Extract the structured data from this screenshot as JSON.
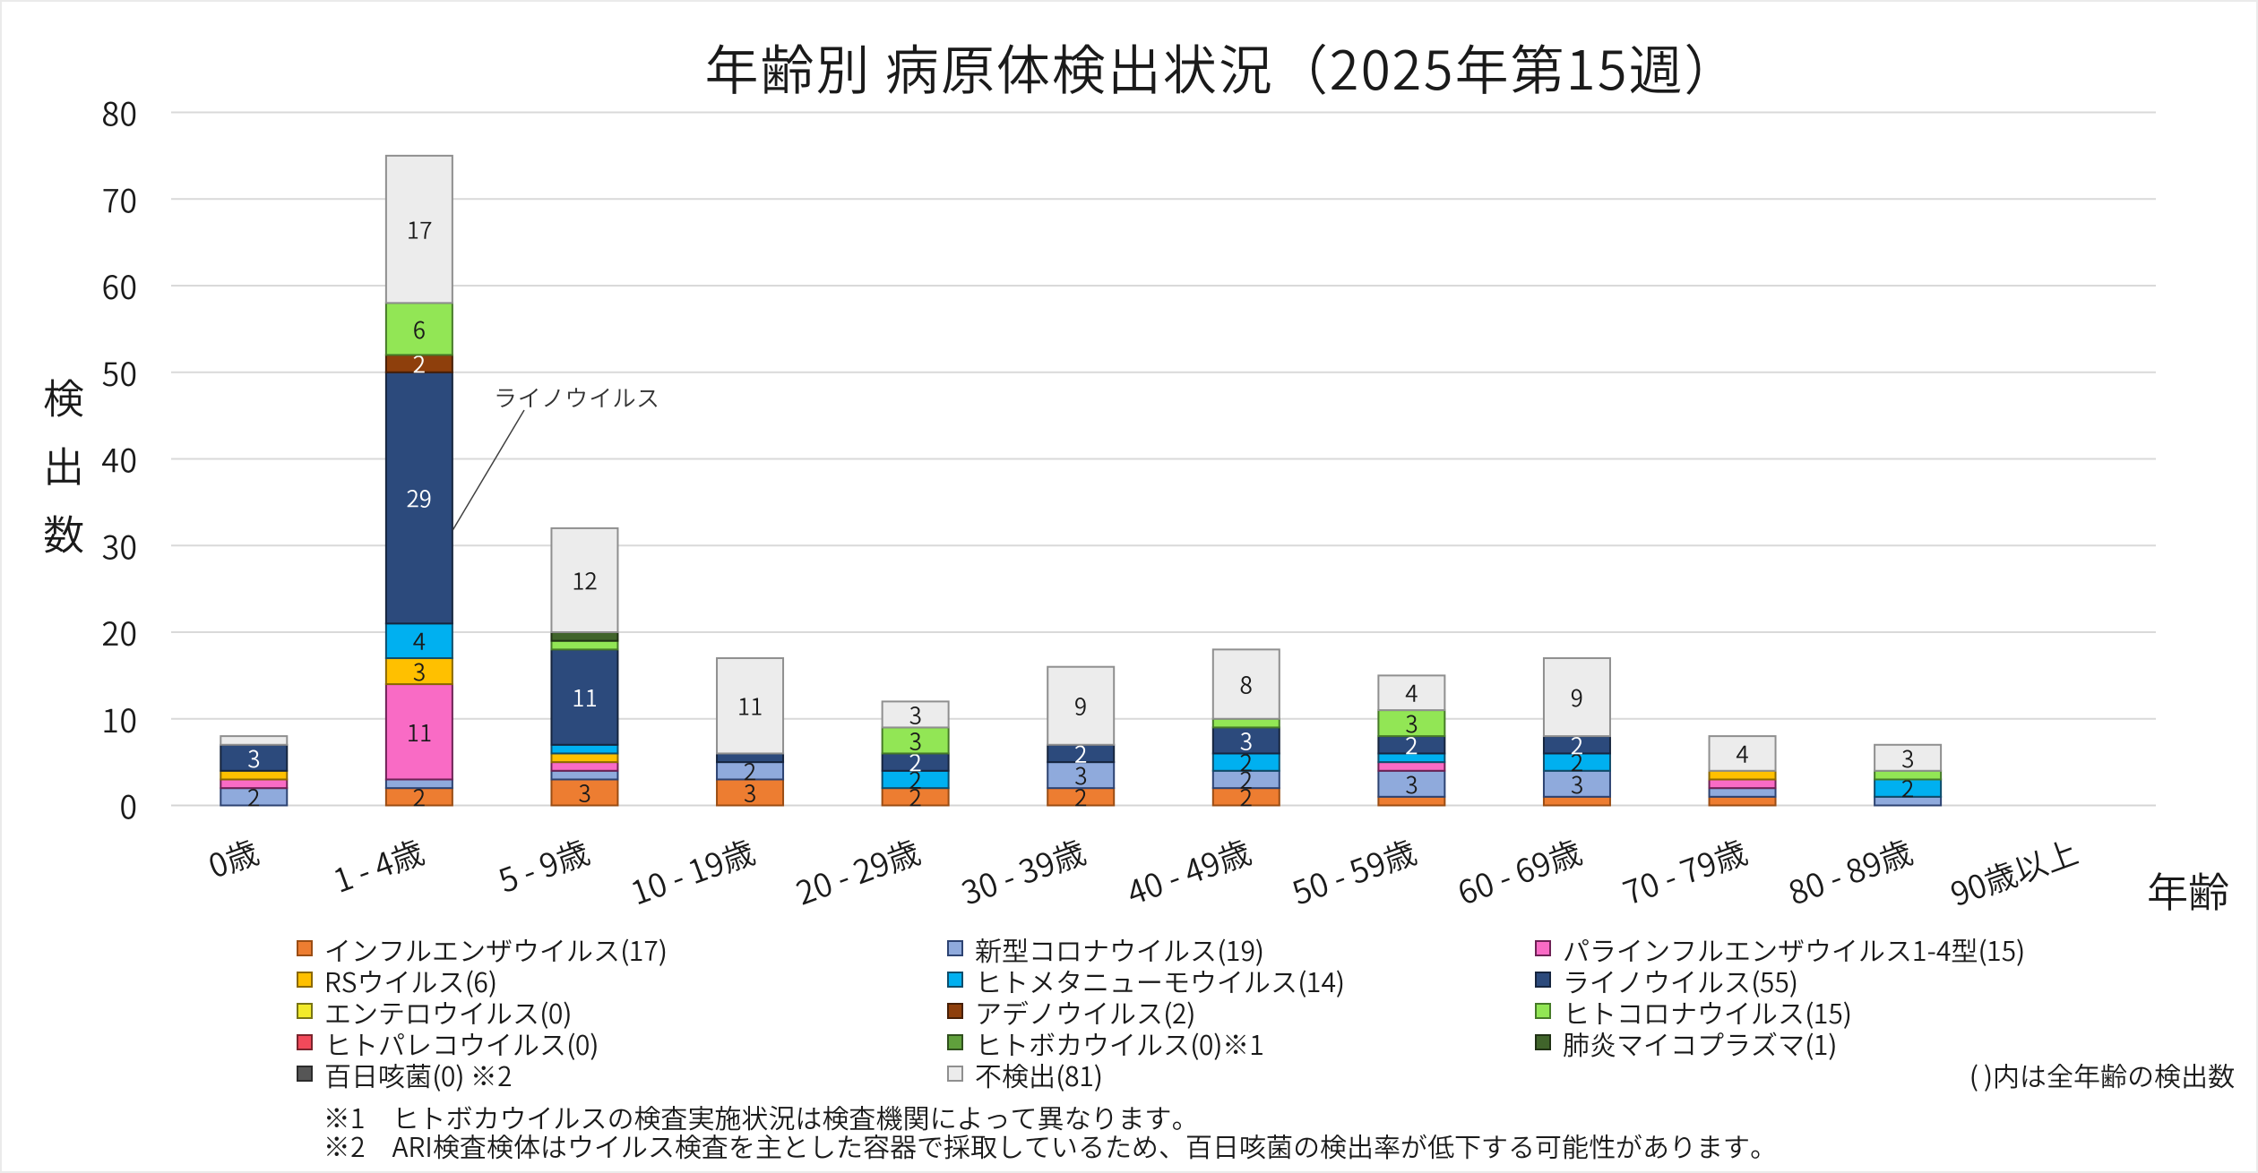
{
  "chart_data": {
    "type": "bar",
    "stacked": true,
    "title": "年齢別 病原体検出状況（2025年第15週）",
    "xlabel": "年齢",
    "ylabel": "検出数",
    "ylim": [
      0,
      80
    ],
    "ytick_step": 10,
    "grid": true,
    "legend_position": "bottom",
    "ink_color": "#1A1A1A",
    "gridline_color": "#D9D9D9",
    "axisline_color": "#D4D4D4",
    "categories": [
      "0歳",
      "1 - 4歳",
      "5 - 9歳",
      "10 - 19歳",
      "20 - 29歳",
      "30 - 39歳",
      "40 - 49歳",
      "50 - 59歳",
      "60 - 69歳",
      "70 - 79歳",
      "80 - 89歳",
      "90歳以上"
    ],
    "series": [
      {
        "name": "インフルエンザウイルス",
        "total": 17,
        "legend_label": "インフルエンザウイルス(17)",
        "color": "#ED7D31",
        "border": "#9A4D14",
        "values": [
          0,
          2,
          3,
          3,
          2,
          2,
          2,
          1,
          1,
          1,
          0,
          0
        ]
      },
      {
        "name": "新型コロナウイルス",
        "total": 19,
        "legend_label": "新型コロナウイルス(19)",
        "color": "#8FAADC",
        "border": "#2D4372",
        "values": [
          2,
          1,
          1,
          2,
          0,
          3,
          2,
          3,
          3,
          1,
          1,
          0
        ]
      },
      {
        "name": "パラインフルエンザウイルス1-4型",
        "total": 15,
        "legend_label": "パラインフルエンザウイルス1-4型(15)",
        "color": "#F96BC5",
        "border": "#6E2255",
        "values": [
          1,
          11,
          1,
          0,
          0,
          0,
          0,
          1,
          0,
          1,
          0,
          0
        ]
      },
      {
        "name": "RSウイルス",
        "total": 6,
        "legend_label": "RSウイルス(6)",
        "color": "#FFC000",
        "border": "#8A6800",
        "values": [
          1,
          3,
          1,
          0,
          0,
          0,
          0,
          0,
          0,
          1,
          0,
          0
        ]
      },
      {
        "name": "ヒトメタニューモウイルス",
        "total": 14,
        "legend_label": "ヒトメタニューモウイルス(14)",
        "color": "#00B0F0",
        "border": "#0E4D6B",
        "values": [
          0,
          4,
          1,
          0,
          2,
          0,
          2,
          1,
          2,
          0,
          2,
          0
        ]
      },
      {
        "name": "ライノウイルス",
        "total": 55,
        "legend_label": "ライノウイルス(55)",
        "color": "#2C4A7C",
        "border": "#16253E",
        "label_color": "#FFFFFF",
        "values": [
          3,
          29,
          11,
          1,
          2,
          2,
          3,
          2,
          2,
          0,
          0,
          0
        ]
      },
      {
        "name": "エンテロウイルス",
        "total": 0,
        "legend_label": "エンテロウイルス(0)",
        "color": "#F2EA2B",
        "border": "#787415",
        "values": [
          0,
          0,
          0,
          0,
          0,
          0,
          0,
          0,
          0,
          0,
          0,
          0
        ]
      },
      {
        "name": "アデノウイルス",
        "total": 2,
        "legend_label": "アデノウイルス(2)",
        "color": "#8E3F0C",
        "border": "#471F06",
        "label_color": "#FFFFFF",
        "values": [
          0,
          2,
          0,
          0,
          0,
          0,
          0,
          0,
          0,
          0,
          0,
          0
        ]
      },
      {
        "name": "ヒトコロナウイルス",
        "total": 15,
        "legend_label": "ヒトコロナウイルス(15)",
        "color": "#92E655",
        "border": "#467A28",
        "values": [
          0,
          6,
          1,
          0,
          3,
          0,
          1,
          3,
          0,
          0,
          1,
          0
        ]
      },
      {
        "name": "ヒトパレコウイルス",
        "total": 0,
        "legend_label": "ヒトパレコウイルス(0)",
        "color": "#F2495A",
        "border": "#7A242D",
        "values": [
          0,
          0,
          0,
          0,
          0,
          0,
          0,
          0,
          0,
          0,
          0,
          0
        ]
      },
      {
        "name": "ヒトボカウイルス",
        "total": 0,
        "legend_label": "ヒトボカウイルス(0)※1",
        "color": "#60A03C",
        "border": "#30501E",
        "values": [
          0,
          0,
          0,
          0,
          0,
          0,
          0,
          0,
          0,
          0,
          0,
          0
        ]
      },
      {
        "name": "肺炎マイコプラズマ",
        "total": 1,
        "legend_label": "肺炎マイコプラズマ(1)",
        "color": "#40642B",
        "border": "#203115",
        "values": [
          0,
          0,
          1,
          0,
          0,
          0,
          0,
          0,
          0,
          0,
          0,
          0
        ]
      },
      {
        "name": "百日咳菌",
        "total": 0,
        "legend_label": "百日咳菌(0) ※2",
        "color": "#565656",
        "border": "#2B2B2B",
        "values": [
          0,
          0,
          0,
          0,
          0,
          0,
          0,
          0,
          0,
          0,
          0,
          0
        ]
      },
      {
        "name": "不検出",
        "total": 81,
        "legend_label": "不検出(81)",
        "color": "#ECECEC",
        "border": "#8F8F8F",
        "values": [
          1,
          17,
          12,
          11,
          3,
          9,
          8,
          4,
          9,
          4,
          3,
          0
        ]
      }
    ],
    "annotation": {
      "text": "ライノウイルス",
      "category_index": 1,
      "stack_value": 31.8
    },
    "legend_note": "( )内は全年齢の検出数",
    "footnotes": [
      "※1　ヒトボカウイルスの検査実施状況は検査機関によって異なります。",
      "※2　ARI検査検体はウイルス検査を主とした容器で採取しているため、百日咳菌の検出率が低下する可能性があります。"
    ],
    "data_label_min": 2
  }
}
